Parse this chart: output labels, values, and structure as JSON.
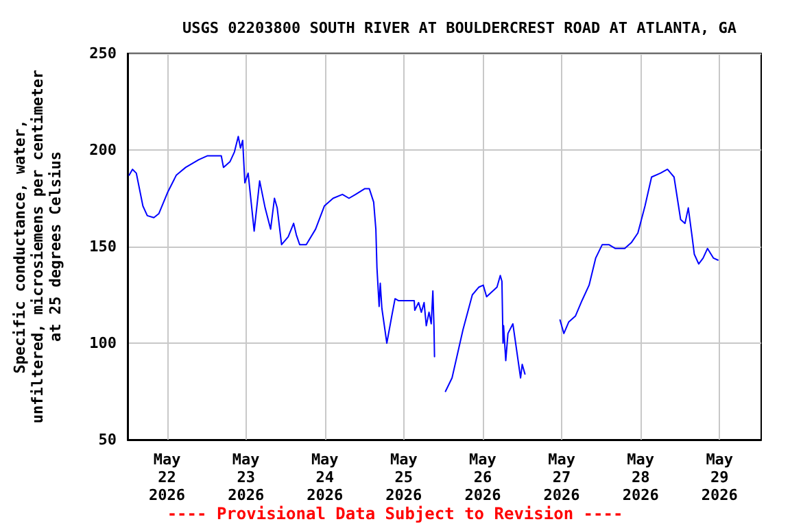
{
  "chart_data": {
    "type": "line",
    "title": "USGS 02203800 SOUTH RIVER AT BOULDERCREST ROAD AT ATLANTA, GA",
    "ylabel": "Specific conductance, water,\nunfiltered, microsiemens per centimeter\nat 25 degrees Celsius",
    "annotations": [
      "---- Provisional Data Subject to Revision ----"
    ],
    "x": [
      "2026-05-21T12:30",
      "2026-05-21T13:30",
      "2026-05-21T14:40",
      "2026-05-21T16:40",
      "2026-05-21T18:00",
      "2026-05-21T20:00",
      "2026-05-21T21:30",
      "2026-05-22T00:10",
      "2026-05-22T02:50",
      "2026-05-22T05:40",
      "2026-05-22T09:40",
      "2026-05-22T12:20",
      "2026-05-22T16:30",
      "2026-05-22T17:10",
      "2026-05-22T19:10",
      "2026-05-22T20:30",
      "2026-05-22T21:40",
      "2026-05-22T22:20",
      "2026-05-22T23:00",
      "2026-05-22T23:40",
      "2026-05-23T00:40",
      "2026-05-23T02:30",
      "2026-05-23T04:10",
      "2026-05-23T05:50",
      "2026-05-23T07:30",
      "2026-05-23T08:40",
      "2026-05-23T09:30",
      "2026-05-23T10:50",
      "2026-05-23T12:50",
      "2026-05-23T14:30",
      "2026-05-23T15:20",
      "2026-05-23T16:20",
      "2026-05-23T18:20",
      "2026-05-23T21:10",
      "2026-05-23T23:50",
      "2026-05-24T02:30",
      "2026-05-24T05:20",
      "2026-05-24T07:20",
      "2026-05-24T09:20",
      "2026-05-24T12:10",
      "2026-05-24T13:30",
      "2026-05-24T14:50",
      "2026-05-24T15:30",
      "2026-05-24T15:50",
      "2026-05-24T16:30",
      "2026-05-24T16:50",
      "2026-05-24T17:20",
      "2026-05-24T18:50",
      "2026-05-24T20:20",
      "2026-05-24T21:20",
      "2026-05-24T22:20",
      "2026-05-25T03:10",
      "2026-05-25T03:20",
      "2026-05-25T04:30",
      "2026-05-25T05:20",
      "2026-05-25T06:10",
      "2026-05-25T06:50",
      "2026-05-25T07:40",
      "2026-05-25T08:20",
      "2026-05-25T08:50",
      "2026-05-25T09:10",
      "2026-05-25T09:20",
      "2026-05-25T11:00",
      "2026-05-25T12:40",
      "2026-05-25T14:40",
      "2026-05-25T18:00",
      "2026-05-25T20:50",
      "2026-05-25T22:50",
      "2026-05-26T00:10",
      "2026-05-26T01:10",
      "2026-05-26T04:20",
      "2026-05-26T05:20",
      "2026-05-26T05:50",
      "2026-05-26T06:10",
      "2026-05-26T06:20",
      "2026-05-26T07:00",
      "2026-05-26T07:40",
      "2026-05-26T09:10",
      "2026-05-26T09:50",
      "2026-05-26T10:40",
      "2026-05-26T11:30",
      "2026-05-26T12:00",
      "2026-05-26T12:50",
      "2026-05-26T18:00",
      "2026-05-26T23:30",
      "2026-05-27T00:40",
      "2026-05-27T02:10",
      "2026-05-27T04:10",
      "2026-05-27T06:10",
      "2026-05-27T08:20",
      "2026-05-27T10:20",
      "2026-05-27T12:20",
      "2026-05-27T14:20",
      "2026-05-27T16:20",
      "2026-05-27T19:10",
      "2026-05-27T21:10",
      "2026-05-27T23:10",
      "2026-05-28T01:20",
      "2026-05-28T03:20",
      "2026-05-28T06:00",
      "2026-05-28T08:10",
      "2026-05-28T10:10",
      "2026-05-28T12:10",
      "2026-05-28T13:30",
      "2026-05-28T14:30",
      "2026-05-28T15:40",
      "2026-05-28T16:20",
      "2026-05-28T17:40",
      "2026-05-28T19:00",
      "2026-05-28T20:20",
      "2026-05-28T22:10",
      "2026-05-28T23:30"
    ],
    "series": [
      {
        "color": "#0000ff",
        "values": [
          187,
          190,
          188,
          171,
          166,
          165,
          167,
          178,
          187,
          191,
          195,
          197,
          197,
          191,
          194,
          199,
          207,
          201,
          205,
          183,
          188,
          158,
          184,
          170,
          159,
          175,
          170,
          151,
          155,
          162,
          156,
          151,
          151,
          159,
          171,
          175,
          177,
          175,
          177,
          180,
          180,
          173,
          159,
          139,
          119,
          131,
          118,
          100,
          114,
          123,
          122,
          122,
          117,
          121,
          116,
          121,
          109,
          116,
          110,
          127,
          109,
          93,
          null,
          75,
          82,
          107,
          125,
          129,
          130,
          124,
          129,
          135,
          132,
          100,
          109,
          91,
          105,
          110,
          102,
          92,
          82,
          89,
          84,
          null,
          112,
          105,
          111,
          114,
          122,
          130,
          144,
          151,
          151,
          149,
          149,
          152,
          157,
          171,
          186,
          188,
          190,
          186,
          164,
          162,
          170,
          155,
          146,
          141,
          144,
          149,
          144,
          143
        ]
      }
    ],
    "xlim": [
      "2026-05-21T12:00",
      "2026-05-29T12:40"
    ],
    "xticks": [
      {
        "value": "2026-05-22",
        "label": "May\n22\n2026"
      },
      {
        "value": "2026-05-23",
        "label": "May\n23\n2026"
      },
      {
        "value": "2026-05-24",
        "label": "May\n24\n2026"
      },
      {
        "value": "2026-05-25",
        "label": "May\n25\n2026"
      },
      {
        "value": "2026-05-26",
        "label": "May\n26\n2026"
      },
      {
        "value": "2026-05-27",
        "label": "May\n27\n2026"
      },
      {
        "value": "2026-05-28",
        "label": "May\n28\n2026"
      },
      {
        "value": "2026-05-29",
        "label": "May\n29\n2026"
      }
    ],
    "ylim": [
      50,
      250
    ],
    "yticks": [
      50,
      100,
      150,
      200,
      250
    ],
    "grid": true
  }
}
